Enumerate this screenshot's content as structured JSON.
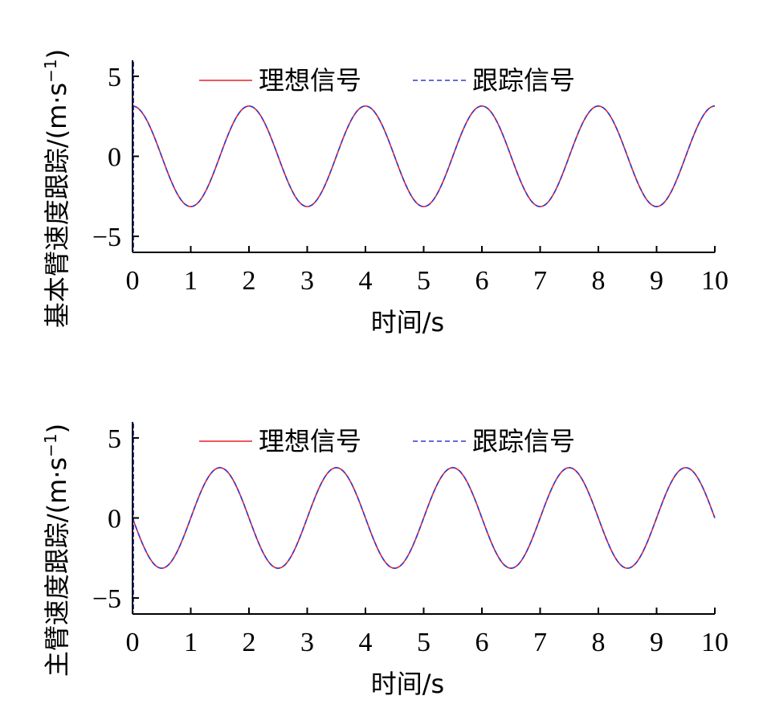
{
  "chart_data": [
    {
      "type": "line",
      "title": "",
      "xlabel": "时间/s",
      "ylabel_main": "基本臂速度跟踪/(m·s",
      "ylabel_sup": "−1",
      "ylabel_close": ")",
      "xlim": [
        0,
        10
      ],
      "ylim": [
        -6,
        6
      ],
      "xticks": [
        "0",
        "1",
        "2",
        "3",
        "4",
        "5",
        "6",
        "7",
        "8",
        "9",
        "10"
      ],
      "yticks": [
        {
          "value": 5,
          "label": "5"
        },
        {
          "value": 0,
          "label": "0"
        },
        {
          "value": -5,
          "label": "−5"
        }
      ],
      "grid": false,
      "legend_position": "top",
      "series": [
        {
          "name": "理想信号",
          "color": "#e8202a",
          "style": "solid",
          "function": "cos",
          "amplitude": 3.14,
          "period": 2.0
        },
        {
          "name": "跟踪信号",
          "color": "#2e3bd6",
          "style": "dashed",
          "function": "cos",
          "amplitude": 3.14,
          "period": 2.0
        }
      ]
    },
    {
      "type": "line",
      "title": "",
      "xlabel": "时间/s",
      "ylabel_main": "主臂速度跟踪/(m·s",
      "ylabel_sup": "−1",
      "ylabel_close": ")",
      "xlim": [
        0,
        10
      ],
      "ylim": [
        -6,
        6
      ],
      "xticks": [
        "0",
        "1",
        "2",
        "3",
        "4",
        "5",
        "6",
        "7",
        "8",
        "9",
        "10"
      ],
      "yticks": [
        {
          "value": 5,
          "label": "5"
        },
        {
          "value": 0,
          "label": "0"
        },
        {
          "value": -5,
          "label": "−5"
        }
      ],
      "grid": false,
      "legend_position": "top",
      "series": [
        {
          "name": "理想信号",
          "color": "#e8202a",
          "style": "solid",
          "function": "-sin",
          "amplitude": 3.14,
          "period": 2.0
        },
        {
          "name": "跟踪信号",
          "color": "#2e3bd6",
          "style": "dashed",
          "function": "-sin",
          "amplitude": 3.14,
          "period": 2.0
        }
      ]
    }
  ]
}
